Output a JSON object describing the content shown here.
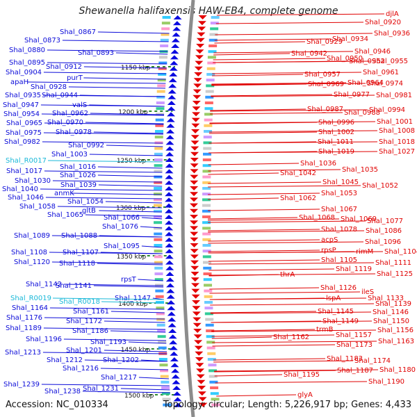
{
  "title": "Shewanella halifaxensis HAW-EB4, complete genome",
  "accession_text": "Accession: NC_010334",
  "topology_text": "Topology: circular; Length: 5,226,917 bp; Genes: 4,433",
  "colors": {
    "left_label": "#0b0bd9",
    "left_rna": "#19b8d8",
    "right_label": "#e00000",
    "backbone": "#8c8c8c",
    "tick": "#2d8a2d"
  },
  "scale_ticks": [
    "1150 kbp",
    "1200 kbp",
    "1250 kbp",
    "1300 kbp",
    "1350 kbp",
    "1400 kbp",
    "1450 kbp",
    "1500 kbp"
  ],
  "left_labels": [
    "Shal_0867",
    "Shal_0873",
    "Shal_0880",
    "Shal_0893",
    "Shal_0895",
    "Shal_0912",
    "Shal_0904",
    "purT",
    "apaH",
    "Shal_0928",
    "Shal_0935",
    "Shal_0944",
    "Shal_0947",
    "valS",
    "Shal_0954",
    "Shal_0962",
    "Shal_0965",
    "Shal_0970",
    "Shal_0975",
    "Shal_0978",
    "Shal_0982",
    "Shal_0992",
    "Shal_R0017",
    "Shal_1003",
    "Shal_1016",
    "Shal_1017",
    "Shal_1026",
    "Shal_1030",
    "Shal_1039",
    "Shal_1040",
    "anmK",
    "Shal_1046",
    "Shal_1054",
    "Shal_1058",
    "gltB",
    "Shal_1065",
    "Shal_1066",
    "Shal_1076",
    "Shal_1089",
    "Shal_1088",
    "Shal_1095",
    "Shal_1108",
    "Shal_1107",
    "Shal_1120",
    "Shal_1118",
    "rpsT",
    "Shal_1142",
    "Shal_1141",
    "Shal_1147",
    "Shal_R0019",
    "Shal_R0018",
    "Shal_1164",
    "Shal_1161",
    "Shal_1176",
    "Shal_1172",
    "Shal_1189",
    "Shal_1186",
    "Shal_1196",
    "Shal_1193",
    "Shal_1201",
    "Shal_1213",
    "Shal_1212",
    "Shal_1202",
    "Shal_1216",
    "Shal_1217",
    "Shal_1239",
    "Shal_1238",
    "Shal_1231"
  ],
  "right_labels": [
    "Shal_0920",
    "djlA",
    "Shal_0936",
    "Shal_0929",
    "Shal_0934",
    "Shal_0946",
    "Shal_0942",
    "Shal_0950",
    "Shal_0952",
    "Shal_0955",
    "Shal_0961",
    "Shal_0957",
    "Shal_0964",
    "Shal_0969",
    "Shal_0974",
    "Shal_0977",
    "Shal_0981",
    "Shal_0987",
    "Shal_0988",
    "Shal_0994",
    "Shal_0996",
    "Shal_1001",
    "Shal_1002",
    "Shal_1008",
    "Shal_1011",
    "Shal_1018",
    "Shal_1019",
    "Shal_1027",
    "Shal_1036",
    "Shal_1035",
    "Shal_1042",
    "Shal_1045",
    "Shal_1052",
    "Shal_1053",
    "Shal_1062",
    "Shal_1067",
    "Shal_1068",
    "Shal_1069",
    "Shal_1077",
    "Shal_1078",
    "Shal_1086",
    "acpS",
    "Shal_1096",
    "rpsP",
    "rimM",
    "Shal_1104",
    "Shal_1105",
    "Shal_1111",
    "Shal_1119",
    "thrA",
    "Shal_1125",
    "Shal_1126",
    "ileS",
    "lspA",
    "Shal_1133",
    "Shal_1139",
    "Shal_1145",
    "Shal_1146",
    "Shal_1149",
    "Shal_1150",
    "trmB",
    "Shal_1156",
    "Shal_1157",
    "Shal_1163",
    "Shal_1162",
    "Shal_1173",
    "Shal_1174",
    "Shal_1183",
    "Shal_1180",
    "Shal_1187",
    "Shal_1190",
    "Shal_1195",
    "glyA"
  ]
}
